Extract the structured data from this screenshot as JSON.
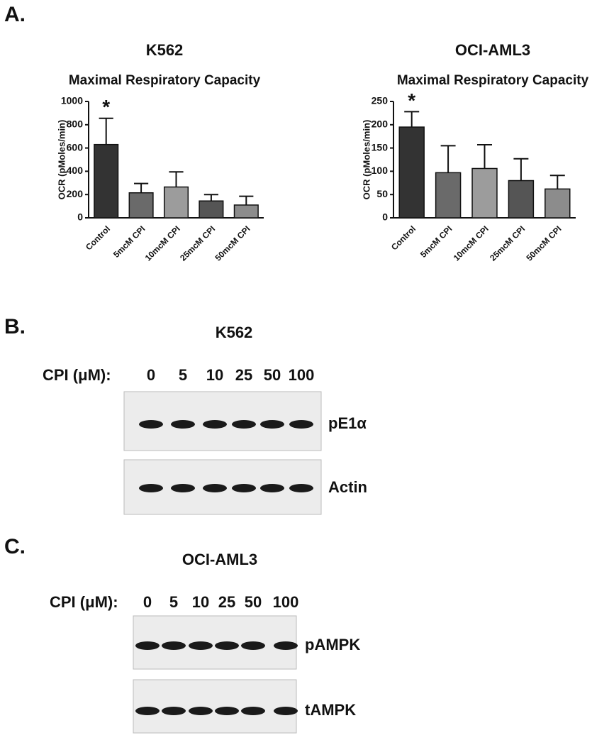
{
  "panels": {
    "a": "A.",
    "b": "B.",
    "c": "C."
  },
  "chart_data": [
    {
      "type": "bar",
      "title": "K562",
      "subtitle": "Maximal Respiratory Capacity",
      "y_label": "OCR (pMoles/min)",
      "categories": [
        "Control",
        "5mcM CPI",
        "10mcM CPI",
        "25mcM CPI",
        "50mcM CPI"
      ],
      "values": [
        630,
        215,
        265,
        145,
        110
      ],
      "errors": [
        225,
        80,
        130,
        55,
        75
      ],
      "colors": [
        "#333333",
        "#6a6a6a",
        "#9c9c9c",
        "#555555",
        "#8c8c8c"
      ],
      "annotations": [
        {
          "category": 0,
          "text": "*"
        }
      ],
      "ylim": [
        0,
        1000
      ],
      "yticks": [
        0,
        200,
        400,
        600,
        800,
        1000
      ]
    },
    {
      "type": "bar",
      "title": "OCI-AML3",
      "subtitle": "Maximal Respiratory Capacity",
      "y_label": "OCR (pMoles/min)",
      "categories": [
        "Control",
        "5mcM CPI",
        "10mcM CPI",
        "25mcM CPI",
        "50mcM CPI"
      ],
      "values": [
        195,
        97,
        106,
        80,
        62
      ],
      "errors": [
        33,
        58,
        51,
        47,
        29
      ],
      "colors": [
        "#333333",
        "#6a6a6a",
        "#9c9c9c",
        "#555555",
        "#8c8c8c"
      ],
      "annotations": [
        {
          "category": 0,
          "text": "*"
        }
      ],
      "ylim": [
        0,
        250
      ],
      "yticks": [
        0,
        50,
        100,
        150,
        200,
        250
      ]
    }
  ],
  "blots": [
    {
      "title": "K562",
      "lane_label": "CPI (μM):",
      "lanes": [
        "0",
        "5",
        "10",
        "25",
        "50",
        "100"
      ],
      "rows": [
        "pE1α",
        "Actin"
      ]
    },
    {
      "title": "OCI-AML3",
      "lane_label": "CPI (μM):",
      "lanes": [
        "0",
        "5",
        "10",
        "25",
        "50",
        "100"
      ],
      "rows": [
        "pAMPK",
        "tAMPK"
      ]
    }
  ]
}
